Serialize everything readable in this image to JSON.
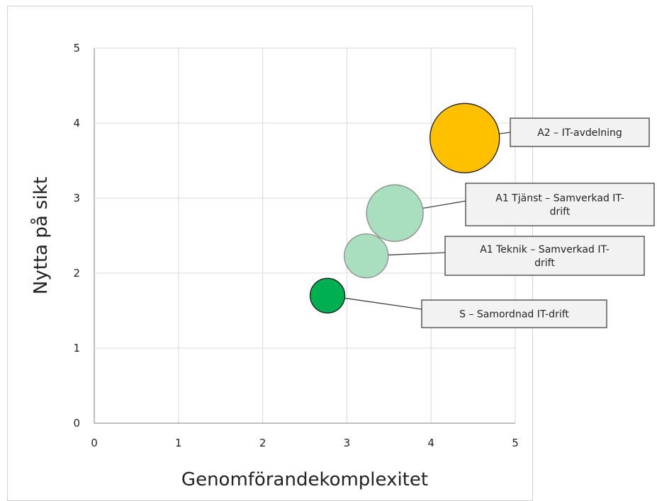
{
  "chart_data": {
    "type": "bubble",
    "xlabel": "Genomförandekomplexitet",
    "ylabel": "Nytta på sikt",
    "xlim": [
      0,
      5
    ],
    "ylim": [
      0,
      5
    ],
    "xticks": [
      "0",
      "1",
      "2",
      "3",
      "4",
      "5"
    ],
    "yticks": [
      "0",
      "1",
      "2",
      "3",
      "4",
      "5"
    ],
    "grid": true,
    "points": [
      {
        "label_lines": [
          "A2 – IT-avdelning"
        ],
        "x": 4.4,
        "y": 3.8,
        "size": 3,
        "color": "#ffc000"
      },
      {
        "label_lines": [
          "A1 Tjänst – Samverkad IT-",
          "drift"
        ],
        "x": 3.57,
        "y": 2.8,
        "size": 2,
        "color": "#a9dfbf"
      },
      {
        "label_lines": [
          "A1 Teknik – Samverkad IT-",
          "drift"
        ],
        "x": 3.23,
        "y": 2.23,
        "size": 1.2,
        "color": "#a9dfbf"
      },
      {
        "label_lines": [
          "S – Samordnad IT-drift"
        ],
        "x": 2.77,
        "y": 1.7,
        "size": 0.75,
        "color": "#00b050"
      }
    ]
  }
}
